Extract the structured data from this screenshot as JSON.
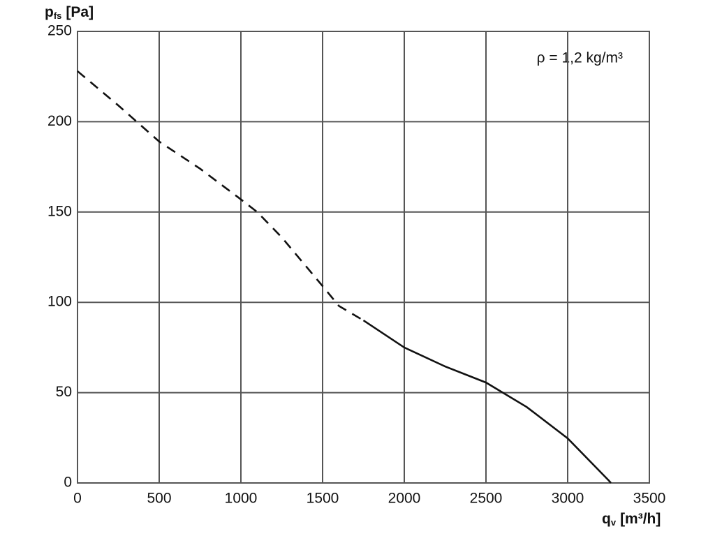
{
  "chart_data": {
    "type": "line",
    "ylabel": {
      "symbol": "p",
      "subscript": "fs",
      "unit": "[Pa]"
    },
    "xlabel": {
      "symbol": "q",
      "subscript": "v",
      "unit": "[m³/h]"
    },
    "annotation": "ρ = 1,2 kg/m³",
    "x": [
      0,
      250,
      500,
      750,
      1000,
      1100,
      1250,
      1500,
      1600,
      1750,
      2000,
      2250,
      2500,
      2750,
      3000,
      3250,
      3265
    ],
    "series": [
      {
        "color": "#111111",
        "style": "dashed",
        "values": [
          228,
          209,
          189,
          174,
          157,
          150,
          136,
          109,
          98,
          90,
          null,
          null,
          null,
          null,
          null,
          null,
          null
        ]
      },
      {
        "color": "#111111",
        "style": "solid",
        "values": [
          null,
          null,
          null,
          null,
          null,
          null,
          null,
          null,
          null,
          90,
          75,
          64.5,
          55.6,
          42,
          24.7,
          1.5,
          0
        ]
      }
    ],
    "xlim": [
      0,
      3500
    ],
    "xticks": [
      0,
      500,
      1000,
      1500,
      2000,
      2500,
      3000,
      3500
    ],
    "ylim": [
      0,
      250
    ],
    "yticks": [
      0,
      50,
      100,
      150,
      200,
      250
    ],
    "grid": true
  }
}
